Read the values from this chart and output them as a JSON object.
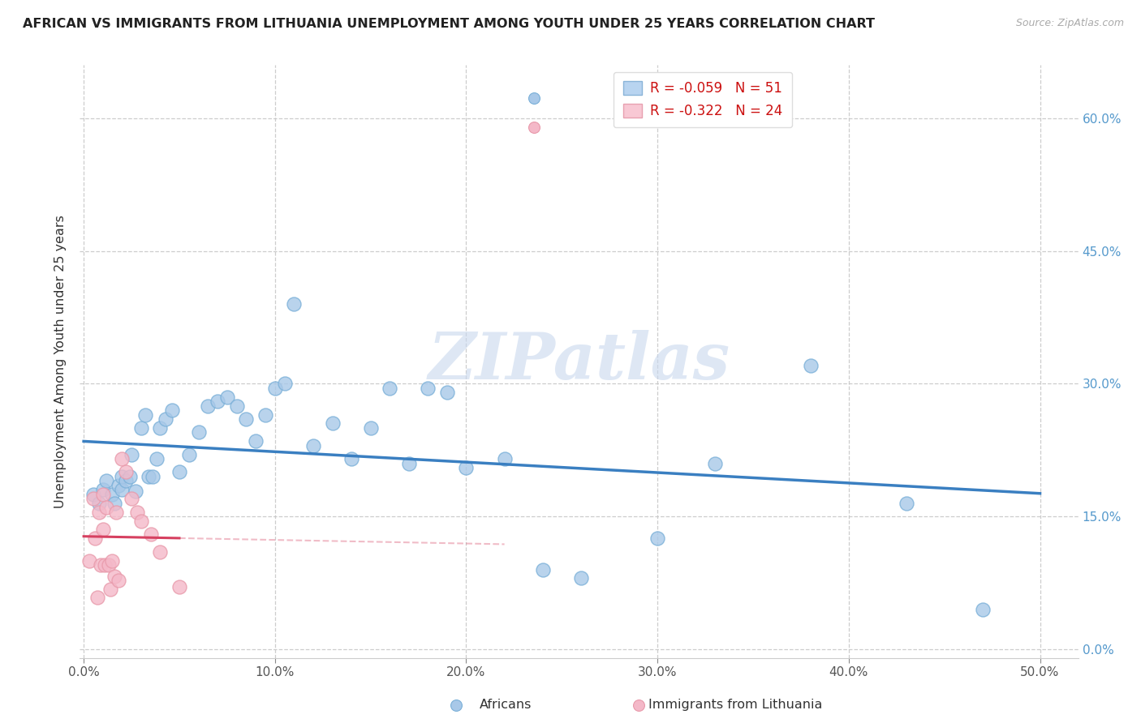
{
  "title": "AFRICAN VS IMMIGRANTS FROM LITHUANIA UNEMPLOYMENT AMONG YOUTH UNDER 25 YEARS CORRELATION CHART",
  "source": "Source: ZipAtlas.com",
  "ylabel": "Unemployment Among Youth under 25 years",
  "xlim": [
    -0.002,
    0.52
  ],
  "ylim": [
    -0.01,
    0.66
  ],
  "xticks": [
    0.0,
    0.1,
    0.2,
    0.3,
    0.4,
    0.5
  ],
  "yticks": [
    0.0,
    0.15,
    0.3,
    0.45,
    0.6
  ],
  "xtick_labels": [
    "0.0%",
    "10.0%",
    "20.0%",
    "30.0%",
    "40.0%",
    "50.0%"
  ],
  "ytick_labels": [
    "0.0%",
    "15.0%",
    "30.0%",
    "45.0%",
    "60.0%"
  ],
  "africans_R": -0.059,
  "africans_N": 51,
  "lithuania_R": -0.322,
  "lithuania_N": 24,
  "legend_label1": "Africans",
  "legend_label2": "Immigrants from Lithuania",
  "africans_dot_color": "#a8c8e8",
  "africans_edge_color": "#7ab0d8",
  "lithuania_dot_color": "#f4b8c8",
  "lithuania_edge_color": "#e899aa",
  "africans_line_color": "#3a7fc1",
  "lithuania_line_color": "#d64060",
  "legend_box_africa_color": "#b8d4f0",
  "legend_box_lith_color": "#f8c8d4",
  "watermark_color": "#c8d8ee",
  "bg_color": "#ffffff",
  "grid_color": "#c8c8c8",
  "right_tick_color": "#5599cc",
  "africans_x": [
    0.005,
    0.008,
    0.01,
    0.012,
    0.015,
    0.016,
    0.018,
    0.02,
    0.02,
    0.022,
    0.024,
    0.025,
    0.027,
    0.03,
    0.032,
    0.034,
    0.036,
    0.038,
    0.04,
    0.043,
    0.046,
    0.05,
    0.055,
    0.06,
    0.065,
    0.07,
    0.075,
    0.08,
    0.085,
    0.09,
    0.095,
    0.1,
    0.105,
    0.11,
    0.12,
    0.13,
    0.14,
    0.15,
    0.16,
    0.17,
    0.18,
    0.19,
    0.2,
    0.22,
    0.24,
    0.26,
    0.3,
    0.33,
    0.38,
    0.43,
    0.47
  ],
  "africans_y": [
    0.175,
    0.165,
    0.18,
    0.19,
    0.175,
    0.165,
    0.185,
    0.18,
    0.195,
    0.19,
    0.195,
    0.22,
    0.178,
    0.25,
    0.265,
    0.195,
    0.195,
    0.215,
    0.25,
    0.26,
    0.27,
    0.2,
    0.22,
    0.245,
    0.275,
    0.28,
    0.285,
    0.275,
    0.26,
    0.235,
    0.265,
    0.295,
    0.3,
    0.39,
    0.23,
    0.255,
    0.215,
    0.25,
    0.295,
    0.21,
    0.295,
    0.29,
    0.205,
    0.215,
    0.09,
    0.08,
    0.125,
    0.21,
    0.32,
    0.165,
    0.045
  ],
  "lithuania_x": [
    0.003,
    0.005,
    0.006,
    0.007,
    0.008,
    0.009,
    0.01,
    0.01,
    0.011,
    0.012,
    0.013,
    0.014,
    0.015,
    0.016,
    0.017,
    0.018,
    0.02,
    0.022,
    0.025,
    0.028,
    0.03,
    0.035,
    0.04,
    0.05
  ],
  "lithuania_y": [
    0.1,
    0.17,
    0.125,
    0.058,
    0.155,
    0.095,
    0.175,
    0.135,
    0.095,
    0.16,
    0.095,
    0.068,
    0.1,
    0.082,
    0.155,
    0.078,
    0.215,
    0.2,
    0.17,
    0.155,
    0.145,
    0.13,
    0.11,
    0.07
  ],
  "watermark_text": "ZIPatlas"
}
